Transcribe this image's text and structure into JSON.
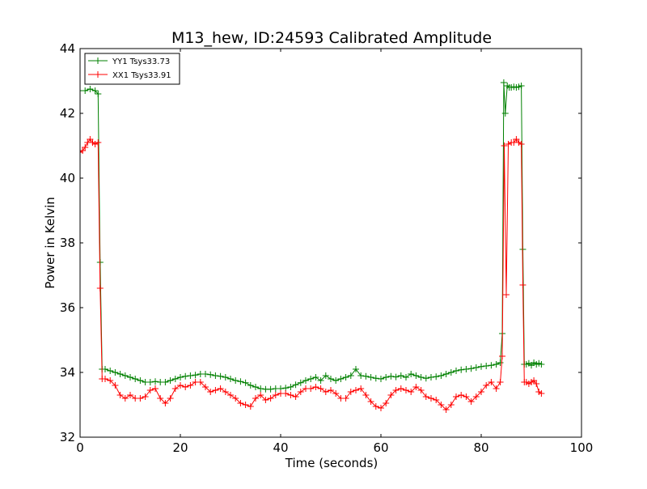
{
  "chart_data": {
    "type": "line",
    "title": "M13_hew, ID:24593 Calibrated Amplitude",
    "xlabel": "Time (seconds)",
    "ylabel": "Power in Kelvin",
    "xlim": [
      0,
      100
    ],
    "ylim": [
      32,
      44
    ],
    "xticks": [
      0,
      20,
      40,
      60,
      80,
      100
    ],
    "yticks": [
      32,
      34,
      36,
      38,
      40,
      42,
      44
    ],
    "grid": false,
    "legend_position": "top-left",
    "marker": "+",
    "series": [
      {
        "name": "YY1 Tsys33.73",
        "color": "#008000",
        "x": [
          0,
          1,
          2,
          3,
          3.6,
          4.0,
          4.4,
          5,
          6,
          7,
          8,
          9,
          10,
          11,
          12,
          13,
          14,
          15,
          16,
          17,
          18,
          19,
          20,
          21,
          22,
          23,
          24,
          25,
          26,
          27,
          28,
          29,
          30,
          31,
          32,
          33,
          34,
          35,
          36,
          37,
          38,
          39,
          40,
          41,
          42,
          43,
          44,
          45,
          46,
          47,
          48,
          49,
          50,
          51,
          52,
          53,
          54,
          55,
          56,
          57,
          58,
          59,
          60,
          61,
          62,
          63,
          64,
          65,
          66,
          67,
          68,
          69,
          70,
          71,
          72,
          73,
          74,
          75,
          76,
          77,
          78,
          79,
          80,
          81,
          82,
          83,
          83.8,
          84.2,
          84.5,
          84.8,
          85.2,
          85.6,
          86,
          86.5,
          87,
          87.5,
          88,
          88.3,
          88.6,
          89,
          89.5,
          90,
          90.5,
          91,
          91.5,
          92
        ],
        "y": [
          42.7,
          42.7,
          42.75,
          42.7,
          42.6,
          37.4,
          34.1,
          34.1,
          34.05,
          34.0,
          33.95,
          33.9,
          33.85,
          33.8,
          33.75,
          33.7,
          33.7,
          33.72,
          33.7,
          33.7,
          33.75,
          33.8,
          33.85,
          33.88,
          33.9,
          33.92,
          33.95,
          33.95,
          33.93,
          33.9,
          33.88,
          33.85,
          33.8,
          33.75,
          33.72,
          33.68,
          33.6,
          33.55,
          33.5,
          33.48,
          33.48,
          33.5,
          33.5,
          33.52,
          33.55,
          33.62,
          33.68,
          33.75,
          33.8,
          33.85,
          33.75,
          33.9,
          33.8,
          33.75,
          33.8,
          33.85,
          33.9,
          34.1,
          33.9,
          33.88,
          33.85,
          33.82,
          33.8,
          33.85,
          33.88,
          33.86,
          33.9,
          33.85,
          33.95,
          33.9,
          33.85,
          33.82,
          33.85,
          33.87,
          33.9,
          33.95,
          34.0,
          34.05,
          34.08,
          34.1,
          34.12,
          34.15,
          34.18,
          34.2,
          34.22,
          34.25,
          34.3,
          35.2,
          42.95,
          42.0,
          42.85,
          42.8,
          42.8,
          42.82,
          42.8,
          42.82,
          42.85,
          37.8,
          34.25,
          34.25,
          34.28,
          34.22,
          34.3,
          34.25,
          34.28,
          34.25
        ]
      },
      {
        "name": "XX1 Tsys33.91",
        "color": "#ff0000",
        "x": [
          0,
          0.5,
          1,
          1.5,
          2,
          2.5,
          3,
          3.6,
          4.0,
          4.4,
          5,
          6,
          7,
          8,
          9,
          10,
          11,
          12,
          13,
          14,
          15,
          16,
          17,
          18,
          19,
          20,
          21,
          22,
          23,
          24,
          25,
          26,
          27,
          28,
          29,
          30,
          31,
          32,
          33,
          34,
          35,
          36,
          37,
          38,
          39,
          40,
          41,
          42,
          43,
          44,
          45,
          46,
          47,
          48,
          49,
          50,
          51,
          52,
          53,
          54,
          55,
          56,
          57,
          58,
          59,
          60,
          61,
          62,
          63,
          64,
          65,
          66,
          67,
          68,
          69,
          70,
          71,
          72,
          73,
          74,
          75,
          76,
          77,
          78,
          79,
          80,
          81,
          82,
          83,
          83.8,
          84.2,
          84.6,
          85.0,
          85.4,
          86,
          86.5,
          87,
          87.5,
          88,
          88.3,
          88.6,
          89,
          89.5,
          90,
          90.5,
          91,
          91.5,
          92
        ],
        "y": [
          40.8,
          40.85,
          40.95,
          41.1,
          41.2,
          41.1,
          41.05,
          41.1,
          36.6,
          33.8,
          33.8,
          33.75,
          33.6,
          33.3,
          33.2,
          33.3,
          33.2,
          33.2,
          33.25,
          33.45,
          33.5,
          33.2,
          33.05,
          33.2,
          33.5,
          33.6,
          33.55,
          33.6,
          33.7,
          33.7,
          33.55,
          33.4,
          33.45,
          33.5,
          33.4,
          33.3,
          33.2,
          33.05,
          33.0,
          32.95,
          33.2,
          33.3,
          33.15,
          33.2,
          33.3,
          33.35,
          33.35,
          33.3,
          33.25,
          33.4,
          33.5,
          33.5,
          33.55,
          33.5,
          33.4,
          33.45,
          33.35,
          33.2,
          33.2,
          33.4,
          33.45,
          33.5,
          33.3,
          33.1,
          32.95,
          32.9,
          33.05,
          33.3,
          33.45,
          33.5,
          33.45,
          33.4,
          33.55,
          33.45,
          33.25,
          33.2,
          33.15,
          33.0,
          32.85,
          33.0,
          33.25,
          33.3,
          33.25,
          33.1,
          33.25,
          33.4,
          33.6,
          33.7,
          33.5,
          33.7,
          34.5,
          41.0,
          36.4,
          41.05,
          41.1,
          41.1,
          41.2,
          41.1,
          41.05,
          36.7,
          33.7,
          33.7,
          33.65,
          33.7,
          33.75,
          33.65,
          33.4,
          33.35
        ]
      }
    ]
  }
}
